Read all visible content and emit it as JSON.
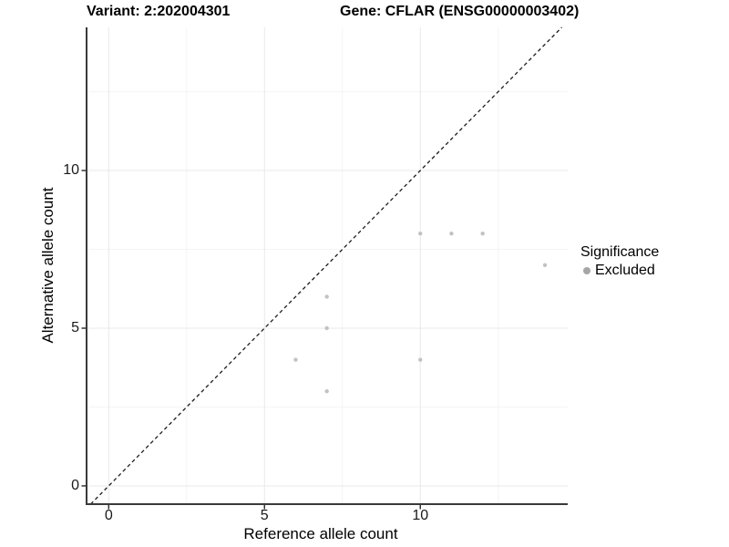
{
  "header": {
    "variant_title": "Variant: 2:202004301",
    "gene_title": "Gene: CFLAR (ENSG00000003402)"
  },
  "axes": {
    "x_label": "Reference allele count",
    "y_label": "Alternative allele count"
  },
  "legend": {
    "title": "Significance",
    "position": "right",
    "items": [
      {
        "label": "Excluded",
        "color": "#a6a6a6",
        "marker": "circle-icon"
      }
    ]
  },
  "chart_data": {
    "type": "scatter",
    "title_left": "Variant: 2:202004301",
    "title_right": "Gene: CFLAR (ENSG00000003402)",
    "xlabel": "Reference allele count",
    "ylabel": "Alternative allele count",
    "xlim": [
      -0.71,
      14.73
    ],
    "ylim": [
      -0.58,
      14.54
    ],
    "x_major_ticks": [
      0,
      5,
      10
    ],
    "y_major_ticks": [
      0,
      5,
      10
    ],
    "x_minor_gridlines": [
      2.5,
      7.5,
      12.5
    ],
    "y_minor_gridlines": [
      2.5,
      7.5,
      12.5
    ],
    "grid": "on",
    "legend_position": "right",
    "series": [
      {
        "name": "Excluded",
        "color": "#c2c2c2",
        "point_radius": 2.2,
        "points": [
          [
            6,
            4
          ],
          [
            7,
            3
          ],
          [
            7,
            5
          ],
          [
            7,
            6
          ],
          [
            10,
            4
          ],
          [
            10,
            8
          ],
          [
            11,
            8
          ],
          [
            12,
            8
          ],
          [
            14,
            7
          ]
        ]
      }
    ],
    "reference_line": {
      "kind": "identity y=x",
      "slope": 1,
      "intercept": 0,
      "style": "dashed",
      "color": "#1c1c1c"
    }
  },
  "colors": {
    "background": "#ffffff",
    "grid_major": "#e8e8e8",
    "grid_minor": "#f4f4f4",
    "axis_line": "#3a3a3a",
    "tick_mark": "#333333",
    "tick_label": "#1a1a1a",
    "legend_point": "#a6a6a6"
  }
}
